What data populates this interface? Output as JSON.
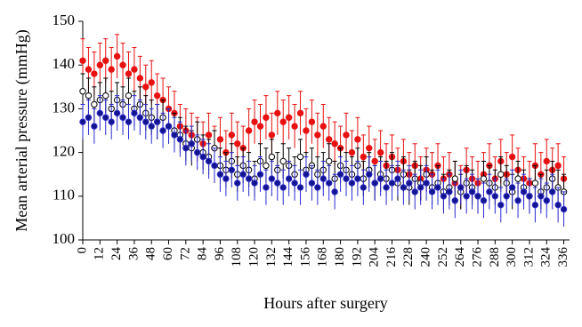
{
  "chart_data": {
    "type": "scatter",
    "y_label": "Mean arterial pressure (mmHg)",
    "x_label": "Hours after surgery",
    "x": [
      0,
      4,
      8,
      12,
      16,
      20,
      24,
      28,
      32,
      36,
      40,
      44,
      48,
      52,
      56,
      60,
      64,
      68,
      72,
      76,
      80,
      84,
      88,
      92,
      96,
      100,
      104,
      108,
      112,
      116,
      120,
      124,
      128,
      132,
      136,
      140,
      144,
      148,
      152,
      156,
      160,
      164,
      168,
      172,
      176,
      180,
      184,
      188,
      192,
      196,
      200,
      204,
      208,
      212,
      216,
      220,
      224,
      228,
      232,
      236,
      240,
      244,
      248,
      252,
      256,
      260,
      264,
      268,
      272,
      276,
      280,
      284,
      288,
      292,
      296,
      300,
      304,
      308,
      312,
      316,
      320,
      324,
      328,
      332,
      336
    ],
    "xlim": [
      0,
      340
    ],
    "xticks": [
      0,
      12,
      24,
      36,
      48,
      60,
      72,
      84,
      96,
      108,
      120,
      132,
      144,
      156,
      168,
      180,
      192,
      204,
      216,
      228,
      240,
      252,
      264,
      276,
      288,
      300,
      312,
      324,
      336
    ],
    "ylim": [
      100,
      150
    ],
    "yticks": [
      100,
      110,
      120,
      130,
      140,
      150
    ],
    "series": [
      {
        "color": "#e81010",
        "marker_fill": "#e81010",
        "error": 5,
        "values": [
          141,
          139,
          138,
          140,
          141,
          139,
          142,
          140,
          138,
          139,
          137,
          135,
          136,
          133,
          132,
          130,
          129,
          126,
          125,
          124,
          123,
          122,
          124,
          121,
          123,
          120,
          124,
          122,
          121,
          125,
          127,
          126,
          128,
          124,
          129,
          127,
          128,
          126,
          129,
          125,
          127,
          124,
          126,
          123,
          122,
          121,
          124,
          120,
          123,
          119,
          121,
          118,
          120,
          117,
          119,
          116,
          118,
          115,
          117,
          114,
          116,
          115,
          117,
          114,
          115,
          113,
          112,
          116,
          114,
          113,
          115,
          117,
          114,
          118,
          115,
          119,
          116,
          114,
          113,
          117,
          115,
          118,
          116,
          117,
          114
        ]
      },
      {
        "color": "#000000",
        "marker_fill": "#ffffff",
        "error": 4,
        "values": [
          134,
          133,
          131,
          132,
          133,
          130,
          132,
          131,
          133,
          130,
          131,
          129,
          128,
          127,
          128,
          126,
          125,
          124,
          122,
          121,
          123,
          120,
          119,
          121,
          117,
          116,
          118,
          115,
          117,
          116,
          114,
          118,
          117,
          119,
          116,
          118,
          117,
          115,
          119,
          116,
          117,
          115,
          116,
          118,
          114,
          117,
          116,
          115,
          117,
          114,
          116,
          113,
          115,
          114,
          116,
          113,
          115,
          112,
          114,
          113,
          115,
          112,
          113,
          111,
          112,
          114,
          111,
          113,
          112,
          110,
          114,
          113,
          112,
          115,
          113,
          111,
          114,
          112,
          110,
          113,
          111,
          112,
          114,
          112,
          111
        ]
      },
      {
        "color": "#2a2ad0",
        "marker_fill": "#14148c",
        "error": 4,
        "values": [
          127,
          128,
          126,
          129,
          128,
          127,
          129,
          128,
          127,
          129,
          128,
          127,
          126,
          127,
          125,
          126,
          124,
          123,
          121,
          122,
          120,
          119,
          118,
          117,
          115,
          114,
          116,
          113,
          115,
          114,
          113,
          115,
          112,
          114,
          113,
          112,
          114,
          113,
          112,
          115,
          113,
          112,
          114,
          113,
          111,
          115,
          114,
          113,
          114,
          112,
          115,
          113,
          114,
          112,
          113,
          114,
          112,
          113,
          111,
          112,
          113,
          111,
          112,
          110,
          111,
          109,
          112,
          110,
          111,
          110,
          109,
          111,
          110,
          108,
          110,
          112,
          109,
          111,
          110,
          108,
          110,
          109,
          111,
          108,
          107
        ]
      }
    ]
  }
}
